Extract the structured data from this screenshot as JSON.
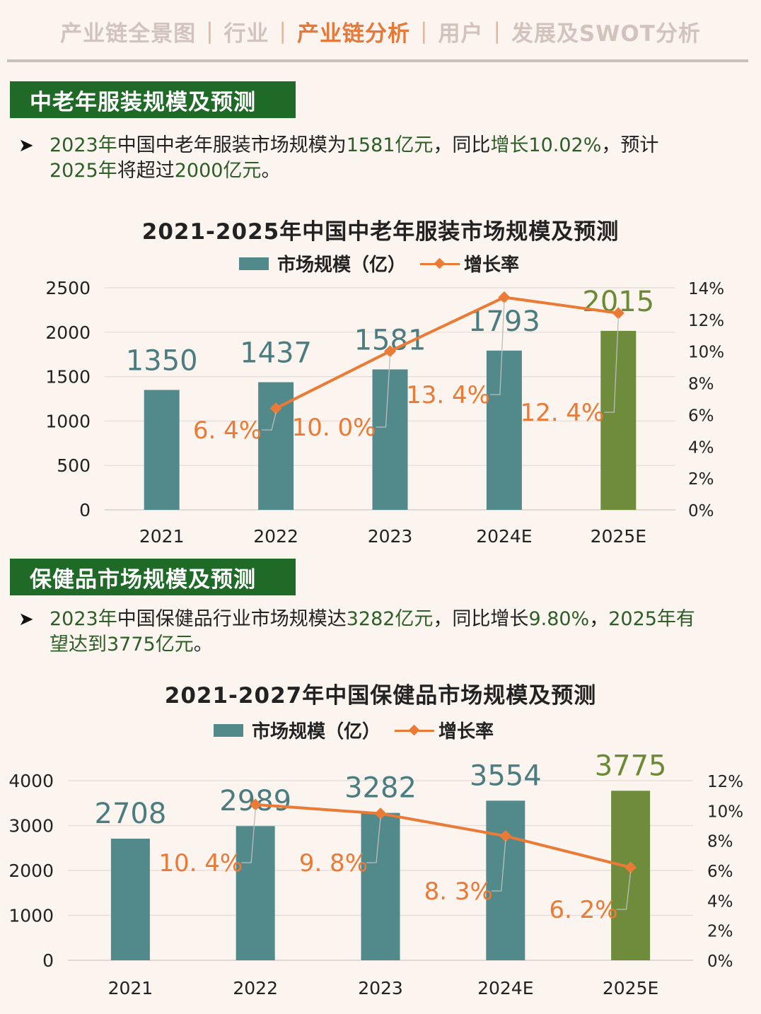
{
  "nav": {
    "items": [
      "产业链全景图",
      "行业",
      "产业链分析",
      "用户",
      "发展及SWOT分析"
    ],
    "separator": "|",
    "active_index": 2,
    "active_color": "#e5793a"
  },
  "sections": [
    {
      "tab_label": "中老年服装规模及预测",
      "bullet": {
        "line1_a": "2023年",
        "line1_b": "中国中老年服装市场规模为",
        "line1_c": "1581亿元",
        "line1_d": "，同比",
        "line1_e": "增长10.02%",
        "line1_f": "，预计",
        "line2_a": "2025年",
        "line2_b": "将超过",
        "line2_c": "2000亿元",
        "line2_d": "。"
      }
    },
    {
      "tab_label": "保健品市场规模及预测",
      "bullet": {
        "line1_a": "2023年",
        "line1_b": "中国保健品行业市场规模达",
        "line1_c": "3282亿元",
        "line1_d": "，同比增长",
        "line1_e": "9.80%",
        "line1_f": "，",
        "line1_g": "2025年有",
        "line2_a": "望达到",
        "line2_b": "3775亿元",
        "line2_c": "。"
      }
    }
  ],
  "colors": {
    "bar": "#528a8c",
    "bar_forecast_last": "#6f8b3c",
    "line": "#ea7a35",
    "rate_label": "#ea7a35",
    "value_label": "#4a7c80",
    "value_label_last": "#6b8a36",
    "tab_bg": "#1f6a27"
  },
  "chart_data": [
    {
      "type": "bar",
      "title": "2021-2025年中国中老年服装市场规模及预测",
      "legend": {
        "bar_label": "市场规模（亿）",
        "line_label": "增长率"
      },
      "categories": [
        "2021",
        "2022",
        "2023",
        "2024E",
        "2025E"
      ],
      "series": [
        {
          "name": "市场规模（亿）",
          "kind": "bar",
          "values": [
            1350,
            1437,
            1581,
            1793,
            2015
          ]
        },
        {
          "name": "增长率",
          "kind": "line",
          "axis": "right",
          "values": [
            null,
            6.4,
            10.0,
            13.4,
            12.4
          ]
        }
      ],
      "value_labels": [
        "1350",
        "1437",
        "1581",
        "1793",
        "2015"
      ],
      "rate_labels": [
        "",
        "6. 4%",
        "10. 0%",
        "13. 4%",
        "12. 4%"
      ],
      "ylim": [
        0,
        2500
      ],
      "yticks": [
        "0",
        "500",
        "1000",
        "1500",
        "2000",
        "2500"
      ],
      "y2lim": [
        0,
        14
      ],
      "y2ticks": [
        "0%",
        "2%",
        "4%",
        "6%",
        "8%",
        "10%",
        "12%",
        "14%"
      ],
      "grid": true,
      "legend_position": "top"
    },
    {
      "type": "bar",
      "title": "2021-2027年中国保健品市场规模及预测",
      "legend": {
        "bar_label": "市场规模（亿）",
        "line_label": "增长率"
      },
      "categories": [
        "2021",
        "2022",
        "2023",
        "2024E",
        "2025E"
      ],
      "series": [
        {
          "name": "市场规模（亿）",
          "kind": "bar",
          "values": [
            2708,
            2989,
            3282,
            3554,
            3775
          ]
        },
        {
          "name": "增长率",
          "kind": "line",
          "axis": "right",
          "values": [
            null,
            10.4,
            9.8,
            8.3,
            6.2
          ]
        }
      ],
      "value_labels": [
        "2708",
        "2989",
        "3282",
        "3554",
        "3775"
      ],
      "rate_labels": [
        "",
        "10. 4%",
        "9. 8%",
        "8. 3%",
        "6. 2%"
      ],
      "ylim": [
        0,
        4000
      ],
      "yticks": [
        "0",
        "1000",
        "2000",
        "3000",
        "4000"
      ],
      "y2lim": [
        0,
        12
      ],
      "y2ticks": [
        "0%",
        "2%",
        "4%",
        "6%",
        "8%",
        "10%",
        "12%"
      ],
      "grid": true,
      "legend_position": "top"
    }
  ]
}
